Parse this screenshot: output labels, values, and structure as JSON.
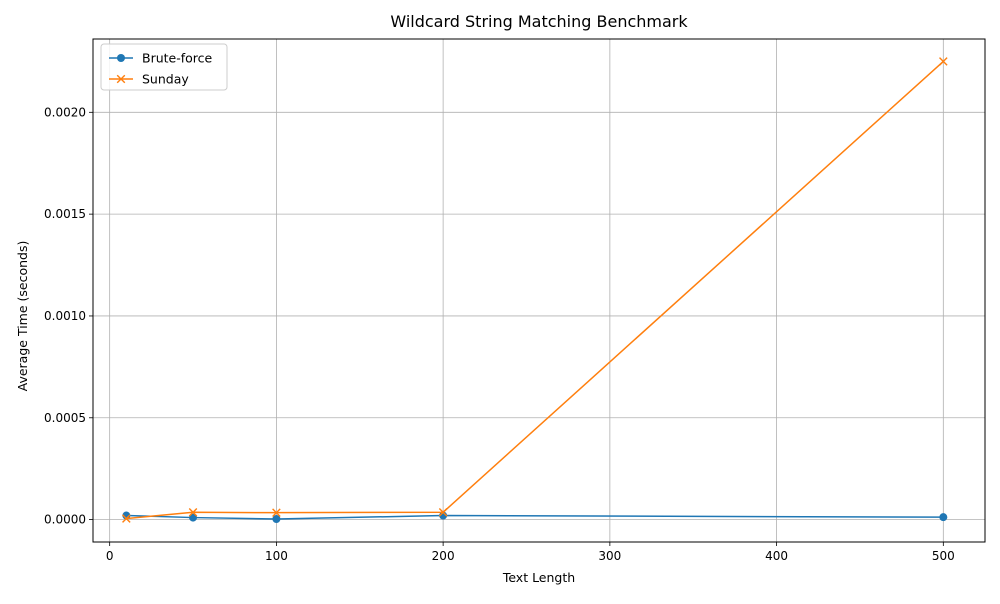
{
  "chart_data": {
    "type": "line",
    "title": "Wildcard String Matching Benchmark",
    "xlabel": "Text Length",
    "ylabel": "Average Time (seconds)",
    "xlim": [
      -10,
      525
    ],
    "ylim": [
      -0.00011,
      0.00236
    ],
    "x_ticks": [
      0,
      100,
      200,
      300,
      400,
      500
    ],
    "x_tick_labels": [
      "0",
      "100",
      "200",
      "300",
      "400",
      "500"
    ],
    "y_ticks": [
      0,
      0.0005,
      0.001,
      0.0015,
      0.002
    ],
    "y_tick_labels": [
      "0.0000",
      "0.0005",
      "0.0010",
      "0.0015",
      "0.0020"
    ],
    "grid": true,
    "legend_position": "upper-left",
    "x": [
      10,
      50,
      100,
      200,
      500
    ],
    "series": [
      {
        "name": "Brute-force",
        "values": [
          2e-05,
          1e-05,
          3e-06,
          2e-05,
          1.2e-05
        ],
        "color": "#1f77b4",
        "marker": "circle"
      },
      {
        "name": "Sunday",
        "values": [
          5e-06,
          3.6e-05,
          3.4e-05,
          3.6e-05,
          0.00225
        ],
        "color": "#ff7f0e",
        "marker": "x"
      }
    ]
  }
}
